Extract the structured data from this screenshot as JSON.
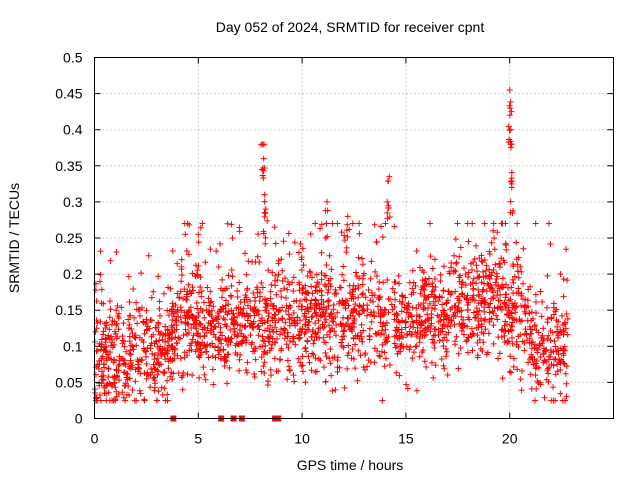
{
  "chart_data": {
    "type": "scatter",
    "title": "Day 052 of 2024, SRMTID for receiver cpnt",
    "xlabel": "GPS time / hours",
    "ylabel": "SRMTID / TECUs",
    "xlim": [
      0,
      25
    ],
    "ylim": [
      0,
      0.5
    ],
    "x_ticks": [
      0,
      5,
      10,
      15,
      20
    ],
    "x_tick_labels": [
      "0",
      "5",
      "10",
      "15",
      "20"
    ],
    "y_ticks": [
      0,
      0.05,
      0.1,
      0.15,
      0.2,
      0.25,
      0.3,
      0.35,
      0.4,
      0.45,
      0.5
    ],
    "y_tick_labels": [
      "0",
      "0.05",
      "0.1",
      "0.15",
      "0.2",
      "0.25",
      "0.3",
      "0.35",
      "0.4",
      "0.45",
      "0.5"
    ],
    "grid": true,
    "marker": "+",
    "color": "#ff0000",
    "x_range_hours": [
      0,
      22.8
    ],
    "baseline_trend": [
      {
        "x": 0,
        "y": 0.08
      },
      {
        "x": 2,
        "y": 0.095
      },
      {
        "x": 3,
        "y": 0.09
      },
      {
        "x": 4,
        "y": 0.13
      },
      {
        "x": 6,
        "y": 0.13
      },
      {
        "x": 8,
        "y": 0.135
      },
      {
        "x": 10,
        "y": 0.14
      },
      {
        "x": 12,
        "y": 0.14
      },
      {
        "x": 14,
        "y": 0.135
      },
      {
        "x": 16,
        "y": 0.14
      },
      {
        "x": 18,
        "y": 0.15
      },
      {
        "x": 19.5,
        "y": 0.17
      },
      {
        "x": 20.5,
        "y": 0.14
      },
      {
        "x": 21.2,
        "y": 0.09
      },
      {
        "x": 22.8,
        "y": 0.1
      }
    ],
    "spikes": [
      {
        "x": 8.1,
        "y": 0.38
      },
      {
        "x": 8.15,
        "y": 0.36
      },
      {
        "x": 8.2,
        "y": 0.31
      },
      {
        "x": 8.25,
        "y": 0.29
      },
      {
        "x": 11.2,
        "y": 0.3
      },
      {
        "x": 12.2,
        "y": 0.28
      },
      {
        "x": 14.2,
        "y": 0.335
      },
      {
        "x": 14.1,
        "y": 0.3
      },
      {
        "x": 4.2,
        "y": 0.22
      },
      {
        "x": 5.0,
        "y": 0.255
      },
      {
        "x": 19.2,
        "y": 0.26
      },
      {
        "x": 20.0,
        "y": 0.455
      },
      {
        "x": 20.02,
        "y": 0.43
      },
      {
        "x": 20.05,
        "y": 0.4
      },
      {
        "x": 20.1,
        "y": 0.38
      },
      {
        "x": 20.1,
        "y": 0.32
      }
    ],
    "zero_values_at_x": [
      3.8,
      6.1,
      6.7,
      7.1,
      8.7,
      8.85
    ]
  }
}
